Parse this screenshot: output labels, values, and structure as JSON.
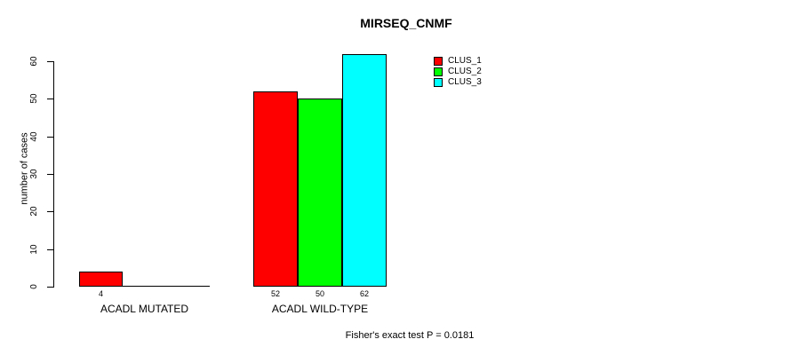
{
  "chart_data": {
    "type": "bar",
    "title": "MIRSEQ_CNMF",
    "ylabel": "number of cases",
    "xlabel": "",
    "categories": [
      "ACADL MUTATED",
      "ACADL WILD-TYPE"
    ],
    "series": [
      {
        "name": "CLUS_1",
        "color": "#ff0000",
        "values": [
          4,
          52
        ]
      },
      {
        "name": "CLUS_2",
        "color": "#00ff00",
        "values": [
          0,
          50
        ]
      },
      {
        "name": "CLUS_3",
        "color": "#00ffff",
        "values": [
          0,
          62
        ]
      }
    ],
    "bar_value_labels": [
      [
        "4",
        "",
        ""
      ],
      [
        "52",
        "50",
        "62"
      ]
    ],
    "yticks": [
      0,
      10,
      20,
      30,
      40,
      50,
      60
    ],
    "ylim": [
      0,
      63
    ],
    "grid": false,
    "legend_position": "top-right",
    "annotation": "Fisher's exact test P = 0.0181"
  },
  "colors": {
    "background": "#ffffff",
    "axis": "#000000",
    "bar_border": "#000000",
    "text": "#000000"
  }
}
